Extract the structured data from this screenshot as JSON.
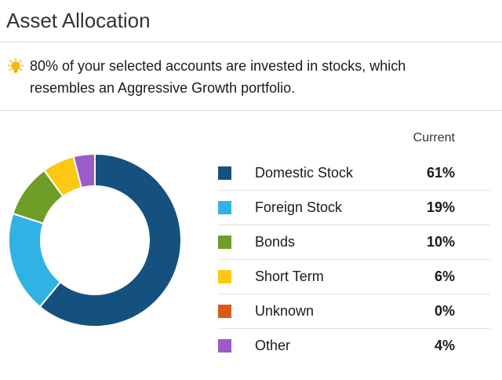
{
  "page": {
    "title": "Asset Allocation"
  },
  "insight": {
    "icon": "lightbulb-icon",
    "text": "80% of your selected accounts are invested in stocks, which resembles an Aggressive Growth portfolio."
  },
  "allocation_table": {
    "column_header": "Current"
  },
  "chart_data": {
    "type": "pie",
    "subtype": "donut",
    "title": "Asset Allocation",
    "legend_position": "right",
    "start_angle": "top",
    "direction": "clockwise",
    "unit": "%",
    "categories": [
      "Domestic Stock",
      "Foreign Stock",
      "Bonds",
      "Short Term",
      "Unknown",
      "Other"
    ],
    "series": [
      {
        "name": "Current",
        "values": [
          61,
          19,
          10,
          6,
          0,
          4
        ]
      }
    ],
    "colors": [
      "#14517E",
      "#31B2E4",
      "#6E9E27",
      "#FCC812",
      "#DB5A1A",
      "#9C5BC6"
    ]
  },
  "theme": {
    "divider_color": "#DCDCDC",
    "title_color": "#333333",
    "text_color": "#1A1A1A",
    "bulb_gold": "#F7B70C",
    "bulb_ray": "#FCCF3E",
    "segment_gap_color": "#FFFFFF"
  }
}
